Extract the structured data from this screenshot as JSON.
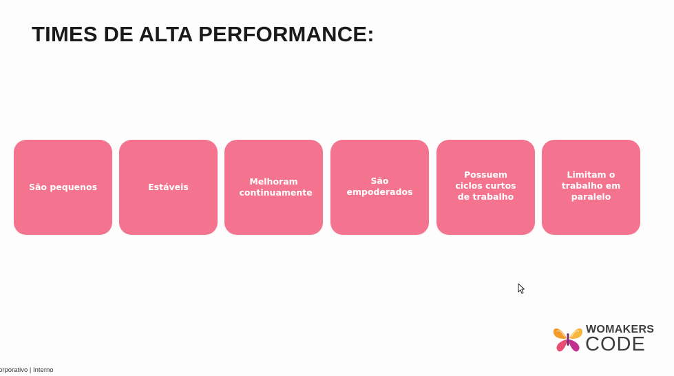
{
  "slide": {
    "title": "TIMES DE ALTA PERFORMANCE:",
    "cards": [
      {
        "label": "São pequenos"
      },
      {
        "label": "Estáveis"
      },
      {
        "label": "Melhoram continuamente"
      },
      {
        "label": "São empoderados"
      },
      {
        "label": "Possuem ciclos curtos de trabalho"
      },
      {
        "label": "Limitam o trabalho em paralelo"
      }
    ],
    "card_color": "#f4738f",
    "logo": {
      "line1": "WOMAKERS",
      "line2": "CODE",
      "icon": "butterfly-logo-icon"
    },
    "footer": "orporativo | Interno",
    "cursor_icon": "mouse-pointer-icon"
  }
}
